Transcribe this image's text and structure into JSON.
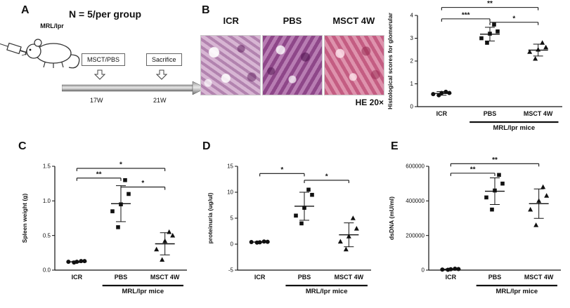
{
  "panels": {
    "A": {
      "label": "A",
      "group_size": "N = 5/per group",
      "mouse_strain": "MRL/lpr",
      "treatment_box": "MSCT/PBS",
      "sacrifice_box": "Sacrifice",
      "timepoint_start": "17W",
      "timepoint_end": "21W"
    },
    "B": {
      "label": "B",
      "image_labels": [
        "ICR",
        "PBS",
        "MSCT 4W"
      ],
      "stain_label": "HE 20×",
      "histology_colors": {
        "icr": "#c9a2c4",
        "pbs": "#a05898",
        "msct": "#d26f93"
      }
    },
    "C": {
      "label": "C"
    },
    "D": {
      "label": "D"
    },
    "E": {
      "label": "E"
    }
  },
  "chart_data": [
    {
      "id": "B",
      "type": "scatter",
      "ylabel": "Histological scores  for glomerular",
      "ylim": [
        0,
        4
      ],
      "yticks": [
        0,
        1,
        2,
        3,
        4
      ],
      "ytick_labels": [
        "0",
        "1",
        "2",
        "3",
        "4"
      ],
      "categories": [
        "ICR",
        "PBS",
        "MSCT 4W"
      ],
      "group_label": "MRL/lpr mice",
      "group_span": [
        1,
        2
      ],
      "series": [
        {
          "category": "ICR",
          "marker": "circle",
          "values": [
            0.55,
            0.65,
            0.5,
            0.6,
            0.6
          ],
          "mean": 0.58,
          "sd": 0.08
        },
        {
          "category": "PBS",
          "marker": "square",
          "values": [
            3.0,
            3.6,
            2.8,
            3.3,
            3.2
          ],
          "mean": 3.18,
          "sd": 0.3
        },
        {
          "category": "MSCT 4W",
          "marker": "triangle",
          "values": [
            2.4,
            2.8,
            2.1,
            2.6,
            2.5
          ],
          "mean": 2.48,
          "sd": 0.26
        }
      ],
      "significance": [
        {
          "from": 0,
          "to": 1,
          "label": "***",
          "y": 3.85
        },
        {
          "from": 1,
          "to": 2,
          "label": "*",
          "y": 3.7
        },
        {
          "from": 0,
          "to": 2,
          "label": "**",
          "y": 4.35
        }
      ]
    },
    {
      "id": "C",
      "type": "scatter",
      "ylabel": "Spleen weight (g)",
      "ylim": [
        0,
        1.5
      ],
      "yticks": [
        0,
        0.5,
        1,
        1.5
      ],
      "ytick_labels": [
        "0.0",
        "0.5",
        "1.0",
        "1.5"
      ],
      "categories": [
        "ICR",
        "PBS",
        "MSCT 4W"
      ],
      "group_label": "MRL/lpr mice",
      "group_span": [
        1,
        2
      ],
      "series": [
        {
          "category": "ICR",
          "marker": "circle",
          "values": [
            0.12,
            0.13,
            0.11,
            0.13,
            0.12
          ],
          "mean": 0.12,
          "sd": 0.01
        },
        {
          "category": "PBS",
          "marker": "square",
          "values": [
            0.85,
            1.3,
            0.62,
            1.1,
            0.95
          ],
          "mean": 0.96,
          "sd": 0.26
        },
        {
          "category": "MSCT 4W",
          "marker": "triangle",
          "values": [
            0.3,
            0.55,
            0.15,
            0.5,
            0.42
          ],
          "mean": 0.38,
          "sd": 0.16
        }
      ],
      "significance": [
        {
          "from": 0,
          "to": 1,
          "label": "**",
          "y": 1.33
        },
        {
          "from": 1,
          "to": 2,
          "label": "*",
          "y": 1.2
        },
        {
          "from": 0,
          "to": 2,
          "label": "*",
          "y": 1.47
        }
      ]
    },
    {
      "id": "D",
      "type": "scatter",
      "ylabel": "proteinuria (ug/ul)",
      "ylim": [
        -5,
        15
      ],
      "yticks": [
        -5,
        0,
        5,
        10,
        15
      ],
      "ytick_labels": [
        "-5",
        "0",
        "5",
        "10",
        "15"
      ],
      "categories": [
        "ICR",
        "PBS",
        "MSCT 4W"
      ],
      "group_label": "MRL/lpr mice",
      "group_span": [
        1,
        2
      ],
      "series": [
        {
          "category": "ICR",
          "marker": "circle",
          "values": [
            0.4,
            0.5,
            0.3,
            0.45,
            0.35
          ],
          "mean": 0.4,
          "sd": 0.08
        },
        {
          "category": "PBS",
          "marker": "square",
          "values": [
            5.5,
            10.5,
            4.0,
            9.5,
            7.0
          ],
          "mean": 7.3,
          "sd": 2.7
        },
        {
          "category": "MSCT 4W",
          "marker": "triangle",
          "values": [
            0.5,
            5.0,
            -1.0,
            3.0,
            1.5
          ],
          "mean": 1.8,
          "sd": 2.3
        }
      ],
      "significance": [
        {
          "from": 0,
          "to": 1,
          "label": "*",
          "y": 13.6
        },
        {
          "from": 1,
          "to": 2,
          "label": "*",
          "y": 12.3
        }
      ]
    },
    {
      "id": "E",
      "type": "scatter",
      "ylabel": "dsDNA (mU/ml)",
      "ylim": [
        0,
        600000
      ],
      "yticks": [
        0,
        200000,
        400000,
        600000
      ],
      "ytick_labels": [
        "0",
        "200000",
        "400000",
        "600000"
      ],
      "categories": [
        "ICR",
        "PBS",
        "MSCT 4W"
      ],
      "group_label": "MRL/lpr mice",
      "group_span": [
        1,
        2
      ],
      "series": [
        {
          "category": "ICR",
          "marker": "circle",
          "values": [
            3000,
            8000,
            2000,
            6000,
            5000
          ],
          "mean": 5000,
          "sd": 3000
        },
        {
          "category": "PBS",
          "marker": "square",
          "values": [
            420000,
            550000,
            350000,
            500000,
            460000
          ],
          "mean": 456000,
          "sd": 77000
        },
        {
          "category": "MSCT 4W",
          "marker": "triangle",
          "values": [
            350000,
            480000,
            260000,
            430000,
            400000
          ],
          "mean": 384000,
          "sd": 85000
        }
      ],
      "significance": [
        {
          "from": 0,
          "to": 1,
          "label": "**",
          "y": 560000
        },
        {
          "from": 0,
          "to": 2,
          "label": "**",
          "y": 615000
        }
      ]
    }
  ]
}
